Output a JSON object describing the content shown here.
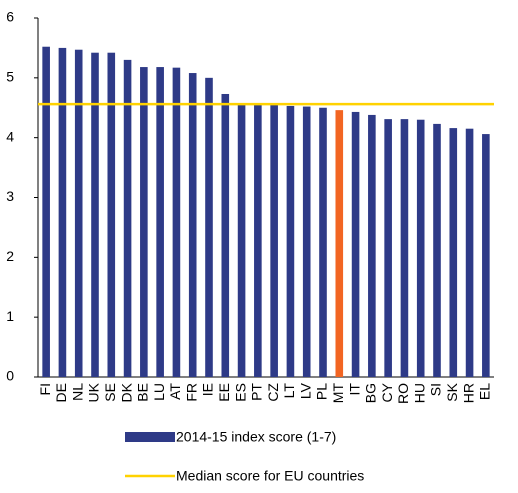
{
  "chart_data": {
    "type": "bar",
    "categories": [
      "FI",
      "DE",
      "NL",
      "UK",
      "SE",
      "DK",
      "BE",
      "LU",
      "AT",
      "FR",
      "IE",
      "EE",
      "ES",
      "PT",
      "CZ",
      "LT",
      "LV",
      "PL",
      "MT",
      "IT",
      "BG",
      "CY",
      "RO",
      "HU",
      "SI",
      "SK",
      "HR",
      "EL"
    ],
    "series": [
      {
        "name": "2014-15 index score (1-7)",
        "color": "#2e3a87",
        "values": [
          5.52,
          5.5,
          5.47,
          5.42,
          5.42,
          5.3,
          5.18,
          5.18,
          5.17,
          5.08,
          5.0,
          4.73,
          4.57,
          4.55,
          4.55,
          4.53,
          4.52,
          4.5,
          4.46,
          4.43,
          4.38,
          4.31,
          4.31,
          4.3,
          4.23,
          4.16,
          4.15,
          4.06
        ]
      }
    ],
    "bar_colors": [
      "#2e3a87",
      "#2e3a87",
      "#2e3a87",
      "#2e3a87",
      "#2e3a87",
      "#2e3a87",
      "#2e3a87",
      "#2e3a87",
      "#2e3a87",
      "#2e3a87",
      "#2e3a87",
      "#2e3a87",
      "#2e3a87",
      "#2e3a87",
      "#2e3a87",
      "#2e3a87",
      "#2e3a87",
      "#2e3a87",
      "#f26522",
      "#2e3a87",
      "#2e3a87",
      "#2e3a87",
      "#2e3a87",
      "#2e3a87",
      "#2e3a87",
      "#2e3a87",
      "#2e3a87",
      "#2e3a87"
    ],
    "reference_line": {
      "name": "Median score for EU countries",
      "color": "#ffd200",
      "value": 4.56
    },
    "ylim": [
      0,
      6
    ],
    "yticks": [
      0,
      1,
      2,
      3,
      4,
      5,
      6
    ],
    "grid": false
  }
}
